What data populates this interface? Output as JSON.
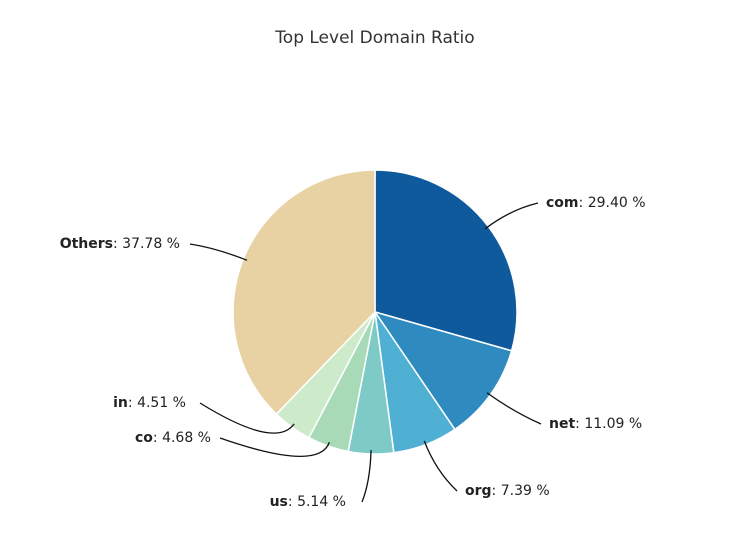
{
  "chart_data": {
    "type": "pie",
    "title": "Top Level Domain Ratio",
    "categories": [
      "com",
      "net",
      "org",
      "us",
      "co",
      "in",
      "Others"
    ],
    "values": [
      29.4,
      11.09,
      7.39,
      5.14,
      4.68,
      4.51,
      37.78
    ],
    "value_labels": [
      "29.40 %",
      "11.09 %",
      "7.39 %",
      "5.14 %",
      "4.68 %",
      "4.51 %",
      "37.78 %"
    ],
    "label_separator": ": ",
    "colors": [
      "#0f5a9c",
      "#2f8bbf",
      "#4fb0d3",
      "#7ecac6",
      "#a8dab8",
      "#cdebcb",
      "#e8d1a2"
    ]
  }
}
